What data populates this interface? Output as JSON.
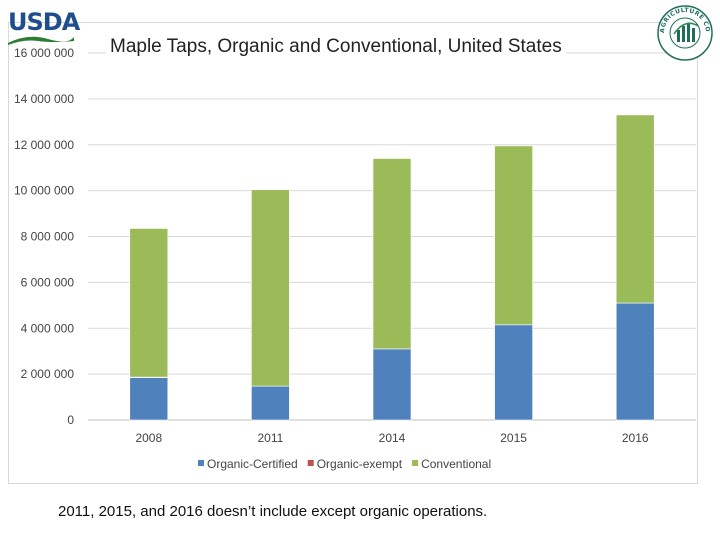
{
  "logo": {
    "text": "USDA"
  },
  "seal": {
    "text": "AGRICULTURE COUNTS"
  },
  "chart_data": {
    "type": "bar",
    "stacked": true,
    "title": "Maple Taps, Organic and Conventional, United States",
    "categories": [
      "2008",
      "2011",
      "2014",
      "2015",
      "2016"
    ],
    "series": [
      {
        "name": "Organic-Certified",
        "color": "#4f81bd",
        "values": [
          1850000,
          1480000,
          3100000,
          4150000,
          5100000
        ]
      },
      {
        "name": "Organic-exempt",
        "color": "#c0504d",
        "values": [
          20000,
          0,
          0,
          0,
          0
        ]
      },
      {
        "name": "Conventional",
        "color": "#9bbb59",
        "values": [
          6480000,
          8560000,
          8300000,
          7800000,
          8200000
        ]
      }
    ],
    "ylim": [
      0,
      16000000
    ],
    "yticks": [
      0,
      2000000,
      4000000,
      6000000,
      8000000,
      10000000,
      12000000,
      14000000,
      16000000
    ],
    "ytick_labels": [
      "0",
      "2 000 000",
      "4 000 000",
      "6 000 000",
      "8 000 000",
      "10 000 000",
      "12 000 000",
      "14 000 000",
      "16 000 000"
    ],
    "xlabel": "",
    "ylabel": "",
    "legend": "bottom"
  },
  "footnote": "2011, 2015, and 2016  doesn’t include except organic operations."
}
